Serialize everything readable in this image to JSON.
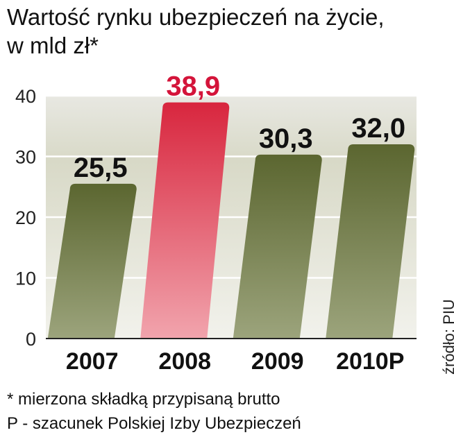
{
  "chart_data": {
    "type": "bar",
    "title": "Wartość rynku ubezpieczeń na życie,",
    "subtitle": "w mld zł*",
    "categories": [
      "2007",
      "2008",
      "2009",
      "2010P"
    ],
    "values": [
      25.5,
      38.9,
      30.3,
      32.0
    ],
    "value_labels": [
      "25,5",
      "38,9",
      "30,3",
      "32,0"
    ],
    "ylim": [
      0,
      40
    ],
    "yticks": [
      "0",
      "10",
      "20",
      "30",
      "40"
    ],
    "highlight_index": 1,
    "grid": true,
    "colors": {
      "bar": "#5b6630",
      "bar_light": "#9ca47c",
      "highlight": "#d8263e",
      "highlight_light": "#f1a4ad",
      "highlight_label": "#d4143a"
    }
  },
  "footnotes": {
    "line1": "* mierzona składką przypisaną brutto",
    "line2": "P - szacunek Polskiej Izby Ubezpieczeń"
  },
  "source": "źródło: PIU"
}
